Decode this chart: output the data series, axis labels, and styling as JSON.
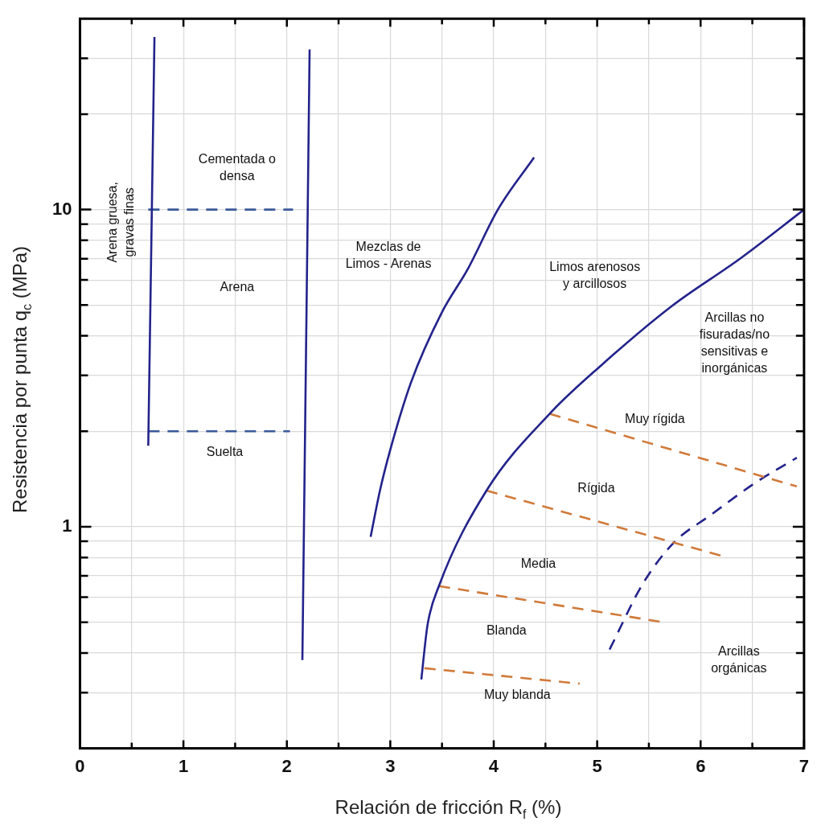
{
  "chart_data": {
    "type": "line",
    "xlabel": "Relación de fricción R$_{f}$ (%)",
    "ylabel": "Resistencia por punta q$_{c}$ (MPa)",
    "xlim": [
      0,
      7
    ],
    "xticks": [
      0,
      {
        "value": 0.5,
        "label": null
      },
      1,
      {
        "value": 1.5,
        "label": null
      },
      2,
      {
        "value": 2.5,
        "label": null
      },
      3,
      {
        "value": 3.5,
        "label": null
      },
      4,
      {
        "value": 4.5,
        "label": null
      },
      5,
      {
        "value": 5.5,
        "label": null
      },
      6,
      {
        "value": 6.5,
        "label": null
      },
      7
    ],
    "ylim": [
      0.2,
      40
    ],
    "log": "y",
    "yticks": [
      {
        "value": 0.3,
        "label": null
      },
      {
        "value": 0.4,
        "label": null
      },
      {
        "value": 0.5,
        "label": null
      },
      {
        "value": 0.6,
        "label": null
      },
      {
        "value": 0.7,
        "label": null
      },
      {
        "value": 0.8,
        "label": null
      },
      {
        "value": 0.9,
        "label": null
      },
      1,
      {
        "value": 2,
        "label": null
      },
      {
        "value": 3,
        "label": null
      },
      {
        "value": 4,
        "label": null
      },
      {
        "value": 5,
        "label": null
      },
      {
        "value": 6,
        "label": null
      },
      {
        "value": 7,
        "label": null
      },
      {
        "value": 8,
        "label": null
      },
      {
        "value": 9,
        "label": null
      },
      10,
      {
        "value": 20,
        "label": null
      },
      {
        "value": 30,
        "label": null
      }
    ],
    "grid": true,
    "legend": false,
    "marker": "none",
    "series": [
      {
        "color": "#23238c",
        "line_style": "solid",
        "x": [
          0.72,
          0.66
        ],
        "values": [
          35,
          1.8
        ]
      },
      {
        "color": "#3a5a9a",
        "line_style": "dashed",
        "x": [
          0.66,
          2.06
        ],
        "values": [
          10,
          10
        ]
      },
      {
        "color": "#3a5a9a",
        "line_style": "dashed",
        "x": [
          0.66,
          2.03
        ],
        "values": [
          2,
          2
        ]
      },
      {
        "color": "#23238c",
        "line_style": "solid",
        "x": [
          2.22,
          2.15
        ],
        "values": [
          32,
          0.38
        ]
      },
      {
        "color": "#23238c",
        "line_style": "solid",
        "x": [
          2.81,
          2.9,
          3.0,
          3.2,
          3.5,
          3.75,
          4.04,
          4.39
        ],
        "values": [
          0.93,
          1.3,
          1.75,
          2.85,
          4.75,
          6.5,
          10,
          14.6
        ]
      },
      {
        "color": "#23238c",
        "line_style": "solid",
        "x": [
          3.3,
          3.36,
          3.47,
          3.93,
          4.54,
          5.04,
          5.72,
          6.38,
          7
        ],
        "values": [
          0.33,
          0.49,
          0.65,
          1.3,
          2.27,
          3.23,
          4.96,
          7.0,
          10
        ]
      },
      {
        "color": "#d07a3a",
        "line_style": "dashed",
        "x": [
          4.54,
          6.93
        ],
        "values": [
          2.27,
          1.34
        ]
      },
      {
        "color": "#d07a3a",
        "line_style": "dashed",
        "x": [
          3.93,
          6.2
        ],
        "values": [
          1.3,
          0.81
        ]
      },
      {
        "color": "#d07a3a",
        "line_style": "dashed",
        "x": [
          3.47,
          5.64
        ],
        "values": [
          0.65,
          0.5
        ]
      },
      {
        "color": "#d07a3a",
        "line_style": "dashed",
        "x": [
          3.33,
          4.83
        ],
        "values": [
          0.358,
          0.32
        ]
      },
      {
        "color": "#23238c",
        "line_style": "dashed",
        "x": [
          5.12,
          5.44,
          5.74,
          6.1,
          6.52,
          6.93
        ],
        "values": [
          0.41,
          0.66,
          0.89,
          1.09,
          1.37,
          1.65
        ]
      }
    ],
    "annotations": [
      "Arena gruesa,\ngravas finas",
      "Cementada o\ndensa",
      "Arena",
      "Suelta",
      "Mezclas de\nLimos - Arenas",
      "Limos arenosos\ny arcillosos",
      "Arcillas no\nfisuradas/no\nsensitivas e\ninorgánicas",
      "Muy rígida",
      "Rígida",
      "Media",
      "Blanda",
      "Muy blanda",
      "Arcillas\norgánicas"
    ]
  }
}
